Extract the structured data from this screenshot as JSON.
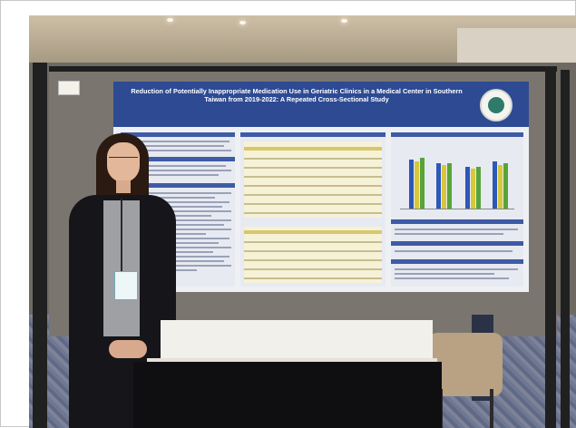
{
  "photo": {
    "subject": "Researcher standing beside a scientific poster at a conference poster session"
  },
  "poster": {
    "title": "Reduction of Potentially Inappropriate Medication Use in Geriatric Clinics in a Medical Center in Southern Taiwan from 2019-2022: A Repeated Cross-Sectional Study",
    "authors": "",
    "colors": {
      "header": "#2d4a93",
      "body": "#eef0f4",
      "table": "#f6f2d8",
      "bar_blue": "#2d57b8",
      "bar_green": "#58a33a",
      "bar_yellow": "#d6c83a"
    }
  }
}
